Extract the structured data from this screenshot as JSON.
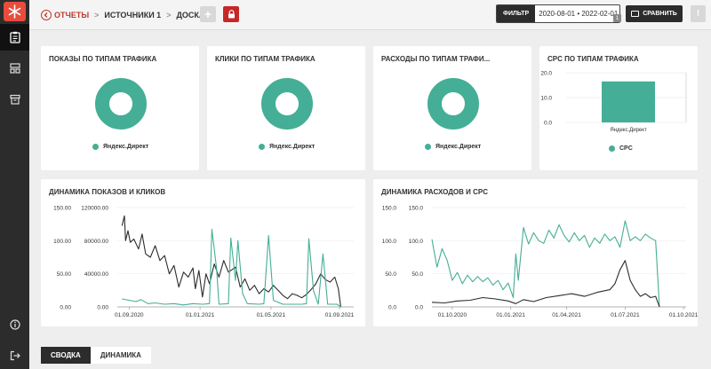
{
  "colors": {
    "accent": "#45ae96",
    "dark": "#2c2c2c",
    "danger": "#c62828"
  },
  "sidebar": {
    "items": [
      {
        "name": "clipboard-icon",
        "active": true
      },
      {
        "name": "layout-icon",
        "active": false
      },
      {
        "name": "archive-icon",
        "active": false
      }
    ],
    "bottom": [
      {
        "name": "info-icon"
      },
      {
        "name": "logout-icon"
      }
    ]
  },
  "breadcrumb": {
    "back": "ОТЧЕТЫ",
    "source": "ИСТОЧНИКИ 1",
    "current": "ДОСКА"
  },
  "toolbar": {
    "add_label": "+",
    "filter_label": "ФИЛЬТР",
    "date_range": "2020-08-01 • 2022-02-01",
    "filter_count": "1",
    "compare_label": "СРАВНИТЬ",
    "more_label": "!"
  },
  "cards": {
    "impressions": {
      "title": "ПОКАЗЫ ПО ТИПАМ ТРАФИКА",
      "legend": "Яндекс.Директ"
    },
    "clicks": {
      "title": "КЛИКИ ПО ТИПАМ ТРАФИКА",
      "legend": "Яндекс.Директ"
    },
    "costs": {
      "title": "РАСХОДЫ ПО ТИПАМ ТРАФИ...",
      "legend": "Яндекс.Директ"
    },
    "cpc": {
      "title": "CPC ПО ТИПАМ ТРАФИКА",
      "legend": "CPC"
    },
    "dyn_impressions": {
      "title": "ДИНАМИКА ПОКАЗОВ И КЛИКОВ"
    },
    "dyn_costs": {
      "title": "ДИНАМИКА РАСХОДОВ И CPC"
    }
  },
  "chart_data": [
    {
      "type": "pie",
      "categories": [
        "Яндекс.Директ"
      ],
      "values": [
        100
      ],
      "title": "ПОКАЗЫ ПО ТИПАМ ТРАФИКА"
    },
    {
      "type": "pie",
      "categories": [
        "Яндекс.Директ"
      ],
      "values": [
        100
      ],
      "title": "КЛИКИ ПО ТИПАМ ТРАФИКА"
    },
    {
      "type": "pie",
      "categories": [
        "Яндекс.Директ"
      ],
      "values": [
        100
      ],
      "title": "РАСХОДЫ ПО ТИПАМ ТРАФИ..."
    },
    {
      "type": "bar",
      "title": "CPC ПО ТИПАМ ТРАФИКА",
      "categories": [
        "Яндекс.Директ"
      ],
      "series": [
        {
          "name": "CPC",
          "values": [
            16.5
          ]
        }
      ],
      "ylim": [
        0,
        20
      ],
      "yticks": [
        "20.0",
        "10.0",
        "0.0"
      ]
    },
    {
      "type": "line",
      "title": "ДИНАМИКА ПОКАЗОВ И КЛИКОВ",
      "left_ylim": [
        0,
        150
      ],
      "right_ylim": [
        0,
        120000
      ],
      "left_ticks": [
        "150.00",
        "100.00",
        "50.00",
        "0.00"
      ],
      "right_ticks": [
        "120000.00",
        "80000.00",
        "40000.00",
        "0.00"
      ],
      "xticks": [
        "01.09.2020",
        "01.01.2021",
        "01.05.2021",
        "01.09.2021"
      ],
      "xtick_fractions": [
        0.05,
        0.35,
        0.65,
        0.94
      ],
      "series": [
        {
          "axis": "right",
          "color": "#2c2c2c",
          "values": [
            {
              "x": 0.02,
              "y": 98000
            },
            {
              "x": 0.03,
              "y": 110000
            },
            {
              "x": 0.035,
              "y": 80000
            },
            {
              "x": 0.045,
              "y": 92000
            },
            {
              "x": 0.055,
              "y": 78000
            },
            {
              "x": 0.07,
              "y": 82000
            },
            {
              "x": 0.09,
              "y": 70000
            },
            {
              "x": 0.105,
              "y": 88000
            },
            {
              "x": 0.12,
              "y": 64000
            },
            {
              "x": 0.14,
              "y": 60000
            },
            {
              "x": 0.16,
              "y": 74000
            },
            {
              "x": 0.18,
              "y": 56000
            },
            {
              "x": 0.2,
              "y": 62000
            },
            {
              "x": 0.22,
              "y": 40000
            },
            {
              "x": 0.24,
              "y": 50000
            },
            {
              "x": 0.26,
              "y": 24000
            },
            {
              "x": 0.28,
              "y": 42000
            },
            {
              "x": 0.3,
              "y": 36000
            },
            {
              "x": 0.32,
              "y": 47000
            },
            {
              "x": 0.33,
              "y": 22000
            },
            {
              "x": 0.345,
              "y": 44000
            },
            {
              "x": 0.36,
              "y": 12000
            },
            {
              "x": 0.375,
              "y": 40000
            },
            {
              "x": 0.39,
              "y": 28000
            },
            {
              "x": 0.41,
              "y": 52000
            },
            {
              "x": 0.43,
              "y": 36000
            },
            {
              "x": 0.45,
              "y": 56000
            },
            {
              "x": 0.47,
              "y": 42000
            },
            {
              "x": 0.5,
              "y": 48000
            },
            {
              "x": 0.52,
              "y": 24000
            },
            {
              "x": 0.54,
              "y": 34000
            },
            {
              "x": 0.56,
              "y": 20000
            },
            {
              "x": 0.58,
              "y": 26000
            },
            {
              "x": 0.6,
              "y": 16000
            },
            {
              "x": 0.62,
              "y": 22000
            },
            {
              "x": 0.64,
              "y": 18000
            },
            {
              "x": 0.66,
              "y": 26000
            },
            {
              "x": 0.68,
              "y": 20000
            },
            {
              "x": 0.7,
              "y": 14000
            },
            {
              "x": 0.72,
              "y": 10000
            },
            {
              "x": 0.74,
              "y": 16000
            },
            {
              "x": 0.76,
              "y": 14000
            },
            {
              "x": 0.78,
              "y": 11000
            },
            {
              "x": 0.8,
              "y": 15000
            },
            {
              "x": 0.82,
              "y": 21000
            },
            {
              "x": 0.84,
              "y": 28000
            },
            {
              "x": 0.86,
              "y": 40000
            },
            {
              "x": 0.88,
              "y": 33000
            },
            {
              "x": 0.9,
              "y": 30000
            },
            {
              "x": 0.92,
              "y": 36000
            },
            {
              "x": 0.935,
              "y": 22000
            },
            {
              "x": 0.945,
              "y": 0
            }
          ]
        },
        {
          "axis": "left",
          "color": "#45ae96",
          "values": [
            {
              "x": 0.02,
              "y": 12
            },
            {
              "x": 0.05,
              "y": 10
            },
            {
              "x": 0.08,
              "y": 8
            },
            {
              "x": 0.1,
              "y": 11
            },
            {
              "x": 0.13,
              "y": 5
            },
            {
              "x": 0.16,
              "y": 6
            },
            {
              "x": 0.2,
              "y": 4
            },
            {
              "x": 0.24,
              "y": 5
            },
            {
              "x": 0.28,
              "y": 3
            },
            {
              "x": 0.32,
              "y": 5
            },
            {
              "x": 0.36,
              "y": 4
            },
            {
              "x": 0.39,
              "y": 5
            },
            {
              "x": 0.4,
              "y": 117
            },
            {
              "x": 0.42,
              "y": 58
            },
            {
              "x": 0.43,
              "y": 4
            },
            {
              "x": 0.47,
              "y": 5
            },
            {
              "x": 0.48,
              "y": 104
            },
            {
              "x": 0.5,
              "y": 40
            },
            {
              "x": 0.51,
              "y": 100
            },
            {
              "x": 0.53,
              "y": 20
            },
            {
              "x": 0.55,
              "y": 5
            },
            {
              "x": 0.6,
              "y": 4
            },
            {
              "x": 0.62,
              "y": 5
            },
            {
              "x": 0.64,
              "y": 108
            },
            {
              "x": 0.66,
              "y": 10
            },
            {
              "x": 0.7,
              "y": 4
            },
            {
              "x": 0.74,
              "y": 4
            },
            {
              "x": 0.78,
              "y": 4
            },
            {
              "x": 0.8,
              "y": 5
            },
            {
              "x": 0.81,
              "y": 103
            },
            {
              "x": 0.83,
              "y": 24
            },
            {
              "x": 0.85,
              "y": 4
            },
            {
              "x": 0.87,
              "y": 80
            },
            {
              "x": 0.89,
              "y": 4
            },
            {
              "x": 0.93,
              "y": 4
            },
            {
              "x": 0.945,
              "y": 0
            }
          ]
        }
      ]
    },
    {
      "type": "line",
      "title": "ДИНАМИКА РАСХОДОВ И CPC",
      "left_ylim": [
        0,
        150
      ],
      "right_ylim": [
        0,
        150
      ],
      "left_ticks": [
        "150.0",
        "100.0",
        "50.0",
        "0.0"
      ],
      "right_ticks": [
        "150.0",
        "100.0",
        "50.0",
        "0.0"
      ],
      "xticks": [
        "01.10.2020",
        "01.01.2021",
        "01.04.2021",
        "01.07.2021",
        "01.10.2021"
      ],
      "xtick_fractions": [
        0.08,
        0.31,
        0.53,
        0.76,
        0.99
      ],
      "series": [
        {
          "axis": "left",
          "color": "#45ae96",
          "values": [
            {
              "x": 0.0,
              "y": 102
            },
            {
              "x": 0.02,
              "y": 60
            },
            {
              "x": 0.04,
              "y": 88
            },
            {
              "x": 0.06,
              "y": 70
            },
            {
              "x": 0.08,
              "y": 40
            },
            {
              "x": 0.1,
              "y": 52
            },
            {
              "x": 0.12,
              "y": 35
            },
            {
              "x": 0.14,
              "y": 48
            },
            {
              "x": 0.16,
              "y": 38
            },
            {
              "x": 0.18,
              "y": 46
            },
            {
              "x": 0.2,
              "y": 38
            },
            {
              "x": 0.22,
              "y": 44
            },
            {
              "x": 0.24,
              "y": 33
            },
            {
              "x": 0.26,
              "y": 40
            },
            {
              "x": 0.28,
              "y": 26
            },
            {
              "x": 0.3,
              "y": 36
            },
            {
              "x": 0.32,
              "y": 14
            },
            {
              "x": 0.33,
              "y": 80
            },
            {
              "x": 0.34,
              "y": 40
            },
            {
              "x": 0.36,
              "y": 120
            },
            {
              "x": 0.38,
              "y": 95
            },
            {
              "x": 0.4,
              "y": 112
            },
            {
              "x": 0.42,
              "y": 100
            },
            {
              "x": 0.44,
              "y": 96
            },
            {
              "x": 0.46,
              "y": 116
            },
            {
              "x": 0.48,
              "y": 104
            },
            {
              "x": 0.5,
              "y": 124
            },
            {
              "x": 0.52,
              "y": 108
            },
            {
              "x": 0.54,
              "y": 98
            },
            {
              "x": 0.56,
              "y": 112
            },
            {
              "x": 0.58,
              "y": 100
            },
            {
              "x": 0.6,
              "y": 108
            },
            {
              "x": 0.62,
              "y": 90
            },
            {
              "x": 0.64,
              "y": 104
            },
            {
              "x": 0.66,
              "y": 96
            },
            {
              "x": 0.68,
              "y": 110
            },
            {
              "x": 0.7,
              "y": 100
            },
            {
              "x": 0.72,
              "y": 106
            },
            {
              "x": 0.74,
              "y": 90
            },
            {
              "x": 0.76,
              "y": 130
            },
            {
              "x": 0.78,
              "y": 100
            },
            {
              "x": 0.8,
              "y": 106
            },
            {
              "x": 0.82,
              "y": 100
            },
            {
              "x": 0.84,
              "y": 110
            },
            {
              "x": 0.86,
              "y": 104
            },
            {
              "x": 0.88,
              "y": 100
            },
            {
              "x": 0.895,
              "y": 0
            }
          ]
        },
        {
          "axis": "right",
          "color": "#2c2c2c",
          "values": [
            {
              "x": 0.0,
              "y": 7
            },
            {
              "x": 0.05,
              "y": 6
            },
            {
              "x": 0.1,
              "y": 9
            },
            {
              "x": 0.15,
              "y": 10
            },
            {
              "x": 0.2,
              "y": 14
            },
            {
              "x": 0.25,
              "y": 12
            },
            {
              "x": 0.3,
              "y": 9
            },
            {
              "x": 0.33,
              "y": 5
            },
            {
              "x": 0.36,
              "y": 11
            },
            {
              "x": 0.4,
              "y": 8
            },
            {
              "x": 0.45,
              "y": 14
            },
            {
              "x": 0.5,
              "y": 17
            },
            {
              "x": 0.55,
              "y": 20
            },
            {
              "x": 0.6,
              "y": 16
            },
            {
              "x": 0.65,
              "y": 22
            },
            {
              "x": 0.7,
              "y": 26
            },
            {
              "x": 0.72,
              "y": 35
            },
            {
              "x": 0.74,
              "y": 56
            },
            {
              "x": 0.76,
              "y": 70
            },
            {
              "x": 0.78,
              "y": 40
            },
            {
              "x": 0.8,
              "y": 26
            },
            {
              "x": 0.82,
              "y": 16
            },
            {
              "x": 0.84,
              "y": 20
            },
            {
              "x": 0.86,
              "y": 14
            },
            {
              "x": 0.88,
              "y": 16
            },
            {
              "x": 0.895,
              "y": 0
            }
          ]
        }
      ]
    }
  ],
  "bottom_tabs": [
    {
      "label": "СВОДКА",
      "active": true
    },
    {
      "label": "ДИНАМИКА",
      "active": false
    }
  ]
}
